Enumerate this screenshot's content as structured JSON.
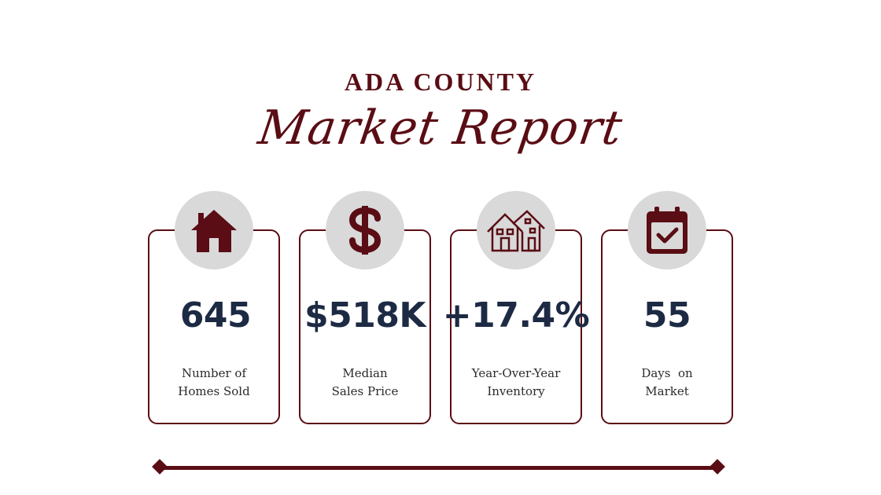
{
  "header": {
    "title": "ADA COUNTY",
    "subtitle": "Market Report"
  },
  "colors": {
    "accent": "#5a0d14",
    "value_text": "#1d2a44",
    "icon_circle": "#d9d9d9"
  },
  "stats": [
    {
      "icon": "house-icon",
      "value": "645",
      "label_line1": "Number of",
      "label_line2": "Homes Sold"
    },
    {
      "icon": "dollar-icon",
      "value": "$518K",
      "label_line1": "Median",
      "label_line2": "Sales Price"
    },
    {
      "icon": "houses-icon",
      "value": "+17.4%",
      "label_line1": "Year-Over-Year",
      "label_line2": "Inventory"
    },
    {
      "icon": "calendar-check-icon",
      "value": "55",
      "label_line1": "Days  on",
      "label_line2": "Market"
    }
  ]
}
